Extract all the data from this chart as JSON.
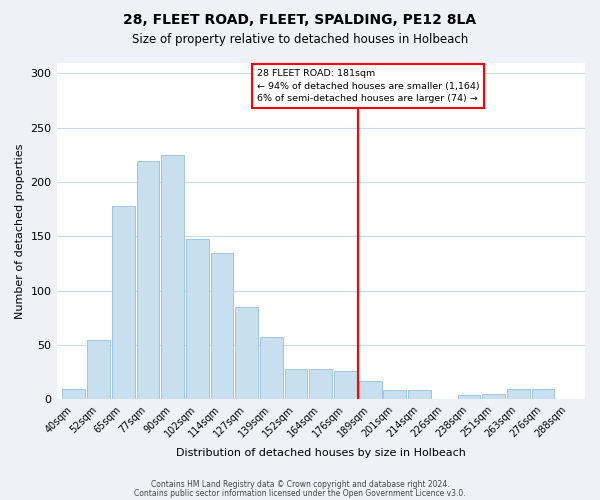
{
  "title": "28, FLEET ROAD, FLEET, SPALDING, PE12 8LA",
  "subtitle": "Size of property relative to detached houses in Holbeach",
  "xlabel": "Distribution of detached houses by size in Holbeach",
  "ylabel": "Number of detached properties",
  "footer_line1": "Contains HM Land Registry data © Crown copyright and database right 2024.",
  "footer_line2": "Contains public sector information licensed under the Open Government Licence v3.0.",
  "bar_labels": [
    "40sqm",
    "52sqm",
    "65sqm",
    "77sqm",
    "90sqm",
    "102sqm",
    "114sqm",
    "127sqm",
    "139sqm",
    "152sqm",
    "164sqm",
    "176sqm",
    "189sqm",
    "201sqm",
    "214sqm",
    "226sqm",
    "238sqm",
    "251sqm",
    "263sqm",
    "276sqm",
    "288sqm"
  ],
  "bar_values": [
    10,
    55,
    178,
    219,
    225,
    148,
    135,
    85,
    57,
    28,
    28,
    26,
    17,
    9,
    9,
    0,
    4,
    5,
    10,
    10
  ],
  "bar_color": "#c8dff0",
  "bar_edge_color": "#a0c4e0",
  "vline_color": "red",
  "annotation_text_line1": "28 FLEET ROAD: 181sqm",
  "annotation_text_line2": "← 94% of detached houses are smaller (1,164)",
  "annotation_text_line3": "6% of semi-detached houses are larger (74) →",
  "ylim": [
    0,
    310
  ],
  "yticks": [
    0,
    50,
    100,
    150,
    200,
    250,
    300
  ],
  "background_color": "#eef2f7",
  "plot_background_color": "#ffffff",
  "grid_color": "#c8d8e8"
}
